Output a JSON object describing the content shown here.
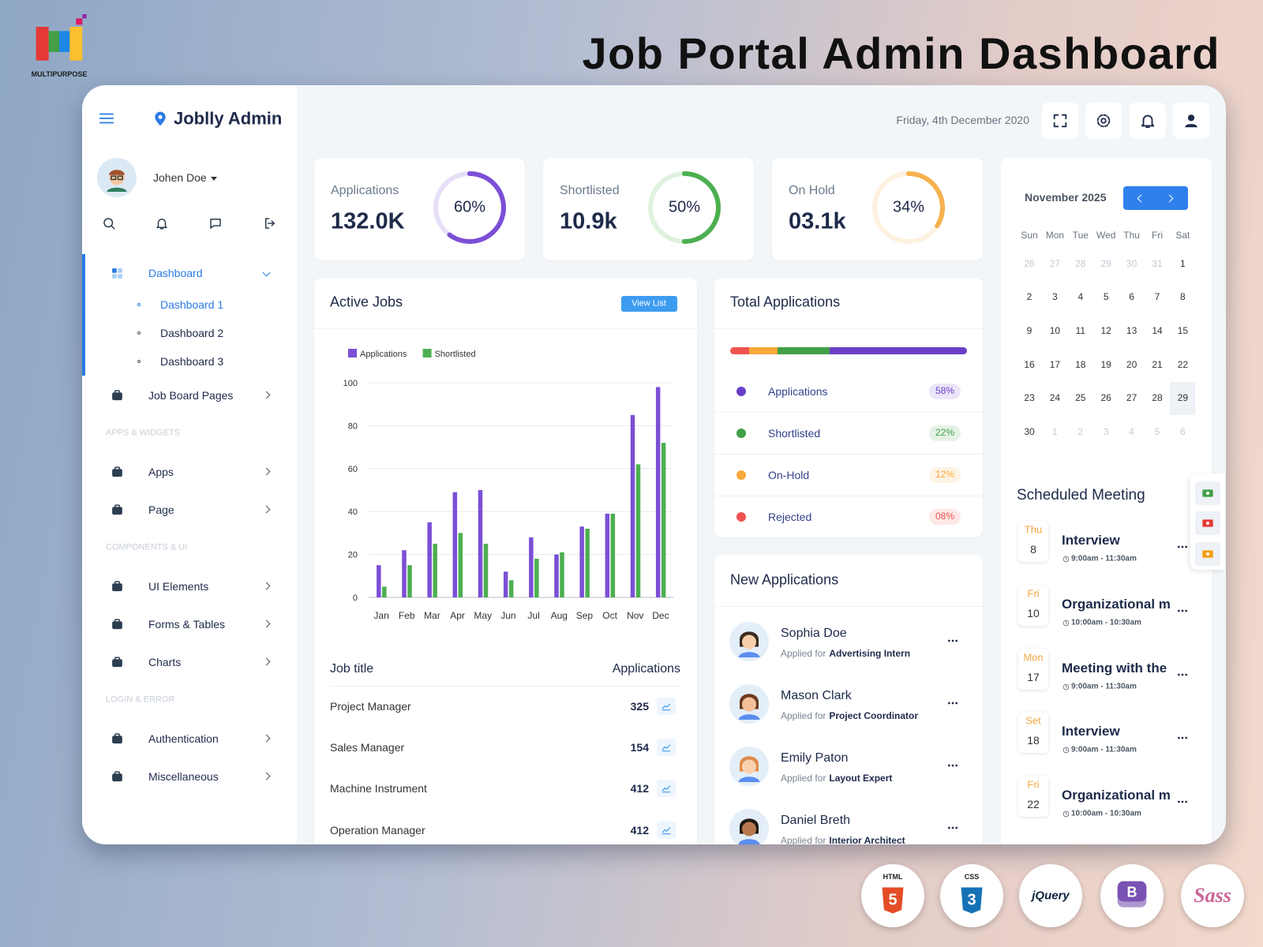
{
  "header": {
    "title": "Job Portal Admin Dashboard",
    "logo_label": "MULTIPURPOSE"
  },
  "sidebar": {
    "brand": "Joblly Admin",
    "user": "Johen Doe",
    "menu": [
      {
        "label": "Dashboard",
        "children": [
          "Dashboard 1",
          "Dashboard 2",
          "Dashboard 3"
        ]
      },
      {
        "label": "Job Board Pages"
      }
    ],
    "sections": [
      {
        "title": "APPS & WIDGETS",
        "items": [
          "Apps",
          "Page"
        ]
      },
      {
        "title": "COMPONENTS & UI",
        "items": [
          "UI Elements",
          "Forms & Tables",
          "Charts"
        ]
      },
      {
        "title": "LOGIN & ERROR",
        "items": [
          "Authentication",
          "Miscellaneous"
        ]
      }
    ]
  },
  "topbar": {
    "date": "Friday, 4th December 2020"
  },
  "stats": [
    {
      "label": "Applications",
      "value": "132.0K",
      "percent": {
        "value": 60,
        "label": "60%"
      },
      "color": "#7b4fd6"
    },
    {
      "label": "Shortlisted",
      "value": "10.9k",
      "percent": {
        "value": 50,
        "label": "50%"
      },
      "color": "#4caf50"
    },
    {
      "label": "On Hold",
      "value": "03.1k",
      "percent": {
        "value": 34,
        "label": "34%"
      },
      "color": "#f7b14f"
    }
  ],
  "chart_data": {
    "type": "bar",
    "title": "Active Jobs",
    "categories": [
      "Jan",
      "Feb",
      "Mar",
      "Apr",
      "May",
      "Jun",
      "Jul",
      "Aug",
      "Sep",
      "Oct",
      "Nov",
      "Dec"
    ],
    "series": [
      {
        "name": "Applications",
        "color": "#7b4fd6",
        "values": [
          15,
          22,
          35,
          49,
          50,
          12,
          28,
          20,
          33,
          39,
          85,
          98
        ]
      },
      {
        "name": "Shortlisted",
        "color": "#4caf50",
        "values": [
          5,
          15,
          25,
          30,
          25,
          8,
          18,
          21,
          32,
          39,
          62,
          72
        ]
      }
    ],
    "ylim": [
      0,
      100
    ],
    "yticks": [
      0,
      20,
      40,
      60,
      80,
      100
    ],
    "grid": true,
    "legend": "top-left"
  },
  "view_list": "View List",
  "jobs": {
    "columns": [
      "Job title",
      "Applications"
    ],
    "rows": [
      [
        "Project Manager",
        325
      ],
      [
        "Sales Manager",
        154
      ],
      [
        "Machine Instrument",
        412
      ],
      [
        "Operation Manager",
        412
      ]
    ]
  },
  "total_applications": {
    "title": "Total Applications",
    "items": [
      {
        "name": "Applications",
        "value": 58,
        "label": "58%",
        "color": "#6a3fc8"
      },
      {
        "name": "Shortlisted",
        "value": 22,
        "label": "22%",
        "color": "#43a047"
      },
      {
        "name": "On-Hold",
        "value": 12,
        "label": "12%",
        "color": "#f9a83a"
      },
      {
        "name": "Rejected",
        "value": 8,
        "label": "08%",
        "color": "#ef5350"
      }
    ]
  },
  "new_applications": {
    "title": "New Applications",
    "prefix": "Applied for",
    "items": [
      {
        "name": "Sophia Doe",
        "job": "Advertising Intern"
      },
      {
        "name": "Mason Clark",
        "job": "Project Coordinator"
      },
      {
        "name": "Emily Paton",
        "job": "Layout Expert"
      },
      {
        "name": "Daniel Breth",
        "job": "Interior Architect"
      }
    ]
  },
  "calendar": {
    "month": "November 2025",
    "weekdays": [
      "Sun",
      "Mon",
      "Tue",
      "Wed",
      "Thu",
      "Fri",
      "Sat"
    ],
    "weeks": [
      [
        26,
        27,
        28,
        29,
        30,
        31,
        1
      ],
      [
        2,
        3,
        4,
        5,
        6,
        7,
        8
      ],
      [
        9,
        10,
        11,
        12,
        13,
        14,
        15
      ],
      [
        16,
        17,
        18,
        19,
        20,
        21,
        22
      ],
      [
        23,
        24,
        25,
        26,
        27,
        28,
        29
      ],
      [
        30,
        1,
        2,
        3,
        4,
        5,
        6
      ]
    ],
    "selected": 29
  },
  "meetings": {
    "title": "Scheduled Meeting",
    "items": [
      {
        "day": "Thu",
        "date": 8,
        "title": "Interview",
        "time": "9:00am - 11:30am"
      },
      {
        "day": "Fri",
        "date": 10,
        "title": "Organizational meeting",
        "time": "10:00am - 10:30am"
      },
      {
        "day": "Mon",
        "date": 17,
        "title": "Meeting with the manager",
        "time": "9:00am - 11:30am"
      },
      {
        "day": "Set",
        "date": 18,
        "title": "Interview",
        "time": "9:00am - 11:30am"
      },
      {
        "day": "Fri",
        "date": 22,
        "title": "Organizational meeting",
        "time": "10:00am - 10:30am"
      }
    ]
  },
  "badges": [
    {
      "label": "HTML",
      "glyph": "5",
      "color": "#e44d26"
    },
    {
      "label": "CSS",
      "glyph": "3",
      "color": "#1572b6"
    },
    {
      "label": "jQuery",
      "color": "#0d2440"
    },
    {
      "glyph": "B",
      "color": "#7952b3"
    },
    {
      "label": "Sass",
      "color": "#cc6699"
    }
  ]
}
